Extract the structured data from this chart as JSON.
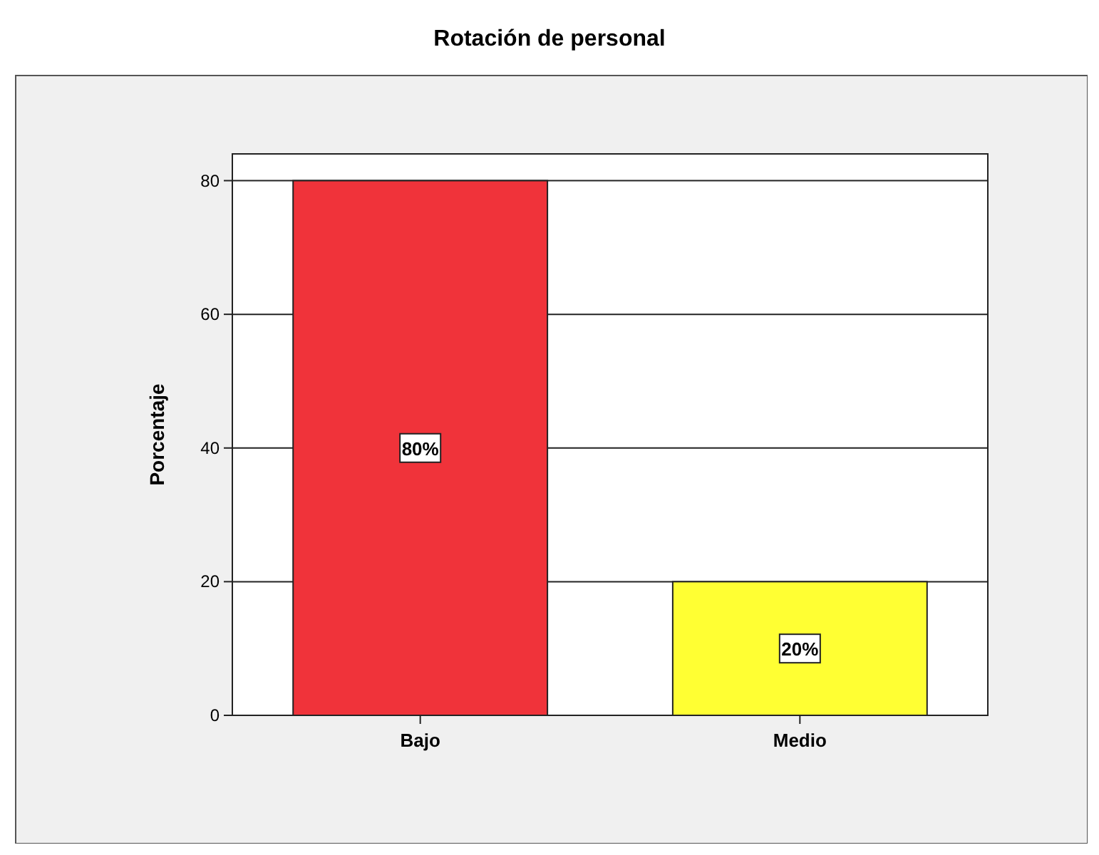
{
  "chart_data": {
    "type": "bar",
    "title": "Rotación de personal",
    "ylabel": "Porcentaje",
    "categories": [
      "Bajo",
      "Medio"
    ],
    "values": [
      80,
      20
    ],
    "colors": [
      "#f0333a",
      "#ffff33"
    ],
    "value_labels": [
      "80%",
      "20%"
    ],
    "ylim": [
      0,
      84
    ],
    "yticks": [
      0,
      20,
      40,
      60,
      80
    ],
    "grid": "y"
  }
}
